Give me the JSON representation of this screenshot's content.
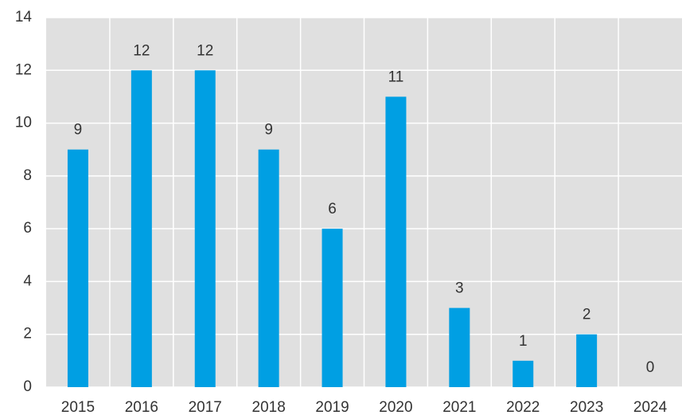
{
  "chart_data": {
    "type": "bar",
    "categories": [
      "2015",
      "2016",
      "2017",
      "2018",
      "2019",
      "2020",
      "2021",
      "2022",
      "2023",
      "2024"
    ],
    "values": [
      9,
      12,
      12,
      9,
      6,
      11,
      3,
      1,
      2,
      0
    ],
    "color": "#009fe3",
    "ylim": [
      0,
      14
    ],
    "yticks": [
      0,
      2,
      4,
      6,
      8,
      10,
      12,
      14
    ],
    "grid": true
  }
}
